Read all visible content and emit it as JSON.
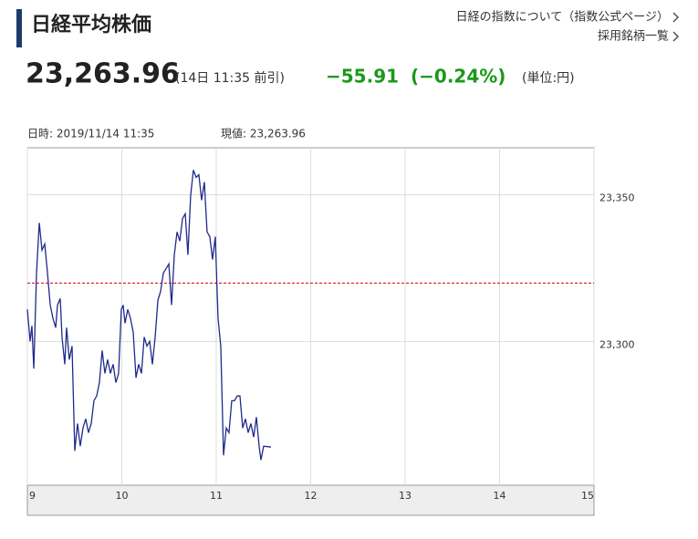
{
  "header": {
    "title": "日経平均株価",
    "links": [
      "日経の指数について（指数公式ページ）",
      "採用銘柄一覧"
    ]
  },
  "quote": {
    "price": "23,263.96",
    "time": "(14日 11:35 前引)",
    "change": "−55.91",
    "change_pct": "(−0.24%)",
    "unit": "(単位:円)",
    "change_color": "#1a9a1a"
  },
  "info": {
    "datetime": "日時: 2019/11/14  11:35",
    "current": "現値: 23,263.96"
  },
  "chart_data": {
    "type": "line",
    "x": [
      9.0,
      9.029,
      9.048,
      9.068,
      9.097,
      9.126,
      9.155,
      9.184,
      9.213,
      9.242,
      9.271,
      9.3,
      9.319,
      9.348,
      9.367,
      9.396,
      9.415,
      9.444,
      9.473,
      9.502,
      9.531,
      9.56,
      9.589,
      9.618,
      9.647,
      9.676,
      9.705,
      9.734,
      9.763,
      9.792,
      9.821,
      9.85,
      9.879,
      9.908,
      9.937,
      9.966,
      9.995,
      10.014,
      10.034,
      10.063,
      10.092,
      10.121,
      10.15,
      10.179,
      10.208,
      10.237,
      10.266,
      10.295,
      10.324,
      10.353,
      10.382,
      10.411,
      10.44,
      10.469,
      10.498,
      10.527,
      10.556,
      10.585,
      10.614,
      10.643,
      10.672,
      10.7,
      10.729,
      10.758,
      10.787,
      10.816,
      10.845,
      10.874,
      10.903,
      10.932,
      10.961,
      10.99,
      11.019,
      11.048,
      11.077,
      11.106,
      11.135,
      11.164,
      11.193,
      11.222,
      11.251,
      11.28,
      11.309,
      11.338,
      11.367,
      11.396,
      11.425,
      11.454,
      11.473,
      11.502,
      11.58
    ],
    "series": [
      {
        "color": "#1f2a8a",
        "values": [
          23310.9,
          23300.0,
          23305.3,
          23290.7,
          23323.3,
          23340.4,
          23331.1,
          23333.2,
          23323.3,
          23312.4,
          23307.8,
          23304.7,
          23312.4,
          23314.6,
          23301.5,
          23292.2,
          23304.7,
          23293.8,
          23298.4,
          23262.7,
          23272.0,
          23264.3,
          23270.5,
          23273.6,
          23268.9,
          23272.0,
          23279.8,
          23281.4,
          23286.0,
          23296.9,
          23289.1,
          23293.8,
          23289.1,
          23292.2,
          23286.0,
          23289.1,
          23310.9,
          23312.4,
          23306.2,
          23310.9,
          23307.8,
          23303.1,
          23287.6,
          23292.2,
          23289.1,
          23301.5,
          23298.4,
          23300.0,
          23292.2,
          23301.5,
          23314.0,
          23317.1,
          23323.3,
          23324.8,
          23326.4,
          23312.4,
          23329.5,
          23337.3,
          23334.2,
          23341.9,
          23343.5,
          23329.5,
          23349.7,
          23358.4,
          23355.9,
          23356.8,
          23348.1,
          23354.3,
          23337.3,
          23335.7,
          23327.9,
          23335.7,
          23307.8,
          23298.4,
          23261.2,
          23270.5,
          23268.9,
          23279.8,
          23279.8,
          23281.4,
          23281.4,
          23270.5,
          23273.6,
          23268.9,
          23272.0,
          23267.4,
          23274.2,
          23264.3,
          23259.6,
          23264.3,
          23264.0
        ]
      }
    ],
    "xlim": [
      9,
      15
    ],
    "xticks": [
      9,
      10,
      11,
      12,
      13,
      14,
      15
    ],
    "ylim": [
      23251,
      23366
    ],
    "yticks": [
      {
        "value": 23300,
        "label": "23,300"
      },
      {
        "value": 23350,
        "label": "23,350"
      }
    ],
    "prev_close_line": {
      "value": 23319.87,
      "color": "#d00000"
    },
    "grid": true
  }
}
